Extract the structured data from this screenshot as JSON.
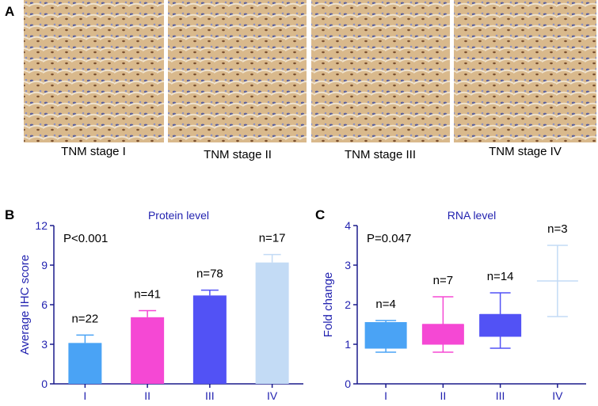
{
  "figure": {
    "panel_a": {
      "label": "A",
      "images": [
        {
          "caption": "TNM stage I"
        },
        {
          "caption": "TNM stage II"
        },
        {
          "caption": "TNM stage III"
        },
        {
          "caption": "TNM stage IV"
        }
      ]
    }
  },
  "chart_data": [
    {
      "type": "bar",
      "panel": "B",
      "title": "Protein level",
      "y_label": "Average IHC score",
      "p_text": "P<0.001",
      "categories": [
        "I",
        "II",
        "III",
        "IV"
      ],
      "values": [
        3.1,
        5.05,
        6.7,
        9.2
      ],
      "errors": [
        0.6,
        0.5,
        0.4,
        0.6
      ],
      "annotations": [
        "n=22",
        "n=41",
        "n=78",
        "n=17"
      ],
      "colors": [
        "#4aa3f5",
        "#f548d4",
        "#5252f5",
        "#c3dbf5"
      ],
      "ylim": [
        0,
        12
      ],
      "yticks": [
        0,
        3,
        6,
        9,
        12
      ]
    },
    {
      "type": "box",
      "panel": "C",
      "title": "RNA level",
      "y_label": "Fold change",
      "p_text": "P=0.047",
      "categories": [
        "I",
        "II",
        "III",
        "IV"
      ],
      "min": [
        0.8,
        0.8,
        0.9,
        1.7
      ],
      "q1": [
        0.9,
        1.0,
        1.2,
        null
      ],
      "median": [
        1.5,
        1.5,
        1.75,
        2.6
      ],
      "q3": [
        1.55,
        1.5,
        1.75,
        null
      ],
      "max": [
        1.6,
        2.2,
        2.3,
        3.5
      ],
      "annotations": [
        "n=4",
        "n=7",
        "n=14",
        "n=3"
      ],
      "colors": [
        "#4aa3f5",
        "#f548d4",
        "#5252f5",
        "#c3dbf5"
      ],
      "ylim": [
        0,
        4
      ],
      "yticks": [
        0,
        1,
        2,
        3,
        4
      ]
    }
  ]
}
